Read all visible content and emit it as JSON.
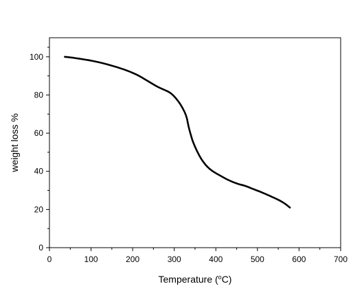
{
  "chart_data": {
    "type": "line",
    "xlabel": {
      "pre": "Temperature (",
      "sup": "o",
      "post": "C)"
    },
    "ylabel": "weight loss %",
    "xlim": [
      0,
      700
    ],
    "ylim": [
      0,
      110
    ],
    "xticks": [
      0,
      100,
      200,
      300,
      400,
      500,
      600,
      700
    ],
    "yticks": [
      0,
      20,
      40,
      60,
      80,
      100
    ],
    "xtick_labels": [
      "0",
      "100",
      "200",
      "300",
      "400",
      "500",
      "600",
      "700"
    ],
    "ytick_labels": [
      "0",
      "20",
      "40",
      "60",
      "80",
      "100"
    ],
    "grid": false,
    "series": [
      {
        "color": "#000000",
        "x": [
          37,
          60,
          100,
          140,
          180,
          210,
          235,
          260,
          285,
          295,
          305,
          315,
          325,
          330,
          335,
          340,
          345,
          355,
          365,
          375,
          385,
          395,
          410,
          425,
          440,
          455,
          470,
          490,
          510,
          530,
          550,
          565,
          578
        ],
        "y": [
          100,
          99.4,
          98,
          96,
          93.3,
          90.6,
          87.5,
          84.3,
          81.8,
          80.3,
          78,
          75,
          71,
          68,
          63,
          59,
          55.5,
          50.5,
          46.5,
          43.5,
          41.3,
          39.7,
          37.8,
          36,
          34.5,
          33.3,
          32.4,
          30.7,
          29,
          27.1,
          25.1,
          23.2,
          21
        ]
      }
    ]
  }
}
